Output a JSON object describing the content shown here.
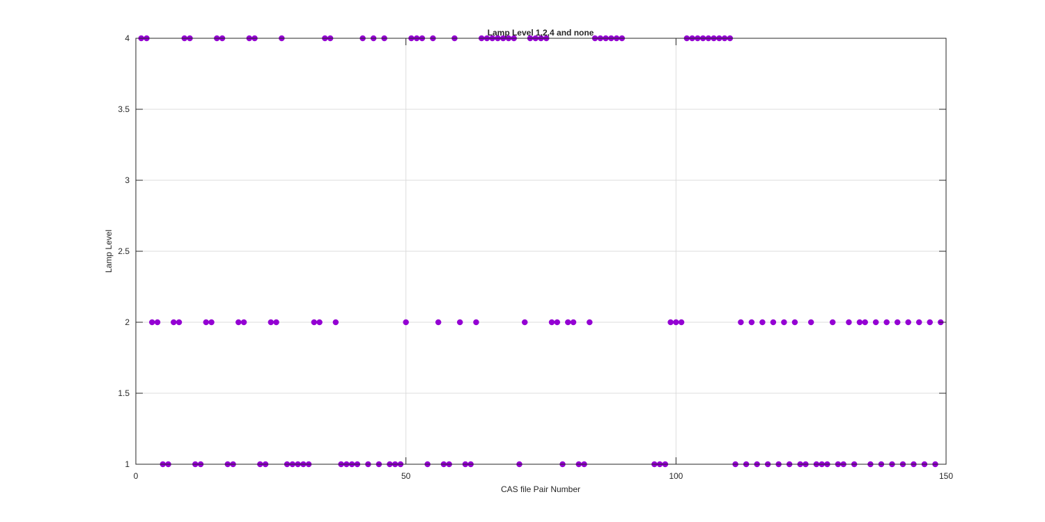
{
  "chart_data": {
    "type": "scatter",
    "title": "Lamp Level 1,2,4 and none",
    "xlabel": "CAS file Pair Number",
    "ylabel": "Lamp Level",
    "xlim": [
      0,
      150
    ],
    "ylim": [
      1,
      4
    ],
    "xticks": [
      0,
      50,
      100,
      150
    ],
    "xtick_labels": [
      "0",
      "50",
      "100",
      "150"
    ],
    "yticks": [
      1,
      1.5,
      2,
      2.5,
      3,
      3.5,
      4
    ],
    "ytick_labels": [
      "1",
      "1.5",
      "2",
      "2.5",
      "3",
      "3.5",
      "4"
    ],
    "grid": true,
    "legend": "none",
    "marker_color": "#9400D3",
    "series": [
      {
        "x": [
          1,
          2,
          3,
          4,
          5,
          6,
          7,
          8,
          9,
          10,
          11,
          12,
          13,
          14,
          15,
          16,
          17,
          18,
          19,
          20,
          21,
          22,
          23,
          24,
          25,
          26,
          27,
          28,
          29,
          30,
          31,
          32,
          33,
          34,
          35,
          36,
          37,
          38,
          39,
          40,
          41,
          42,
          43,
          44,
          45,
          46,
          47,
          48,
          49,
          50,
          51,
          52,
          53,
          54,
          55,
          56,
          57,
          58,
          59,
          60,
          61,
          62,
          63,
          64,
          65,
          66,
          67,
          68,
          69,
          70,
          71,
          72,
          73,
          74,
          75,
          76,
          77,
          78,
          79,
          80,
          81,
          82,
          83,
          84,
          85,
          86,
          87,
          88,
          89,
          90,
          96,
          97,
          98,
          99,
          100,
          101,
          102,
          103,
          104,
          105,
          106,
          107,
          108,
          109,
          110,
          111,
          112,
          113,
          114,
          115,
          116,
          117,
          118,
          119,
          120,
          121,
          122,
          123,
          124,
          125,
          126,
          127,
          128,
          129,
          130,
          131,
          132,
          133,
          134,
          135,
          136,
          137,
          138,
          139,
          140,
          141,
          142,
          143,
          144,
          145,
          146,
          147,
          148,
          149
        ],
        "y": [
          4,
          4,
          2,
          2,
          1,
          1,
          2,
          2,
          4,
          4,
          1,
          1,
          2,
          2,
          4,
          4,
          1,
          1,
          2,
          2,
          4,
          4,
          1,
          1,
          2,
          2,
          4,
          1,
          1,
          1,
          1,
          1,
          2,
          2,
          4,
          4,
          2,
          1,
          1,
          1,
          1,
          4,
          1,
          4,
          1,
          4,
          1,
          1,
          1,
          2,
          4,
          4,
          4,
          1,
          4,
          2,
          1,
          1,
          4,
          2,
          1,
          1,
          2,
          4,
          4,
          4,
          4,
          4,
          4,
          4,
          1,
          2,
          4,
          4,
          4,
          4,
          2,
          2,
          1,
          2,
          2,
          1,
          1,
          2,
          4,
          4,
          4,
          4,
          4,
          4,
          1,
          1,
          1,
          2,
          2,
          2,
          4,
          4,
          4,
          4,
          4,
          4,
          4,
          4,
          4,
          1,
          2,
          1,
          2,
          1,
          2,
          1,
          2,
          1,
          2,
          1,
          2,
          1,
          1,
          2,
          1,
          1,
          1,
          2,
          1,
          1,
          2,
          1,
          2,
          2,
          1,
          2,
          1,
          2,
          1,
          2,
          1,
          2,
          1,
          2,
          1,
          2,
          1,
          2
        ]
      }
    ]
  }
}
